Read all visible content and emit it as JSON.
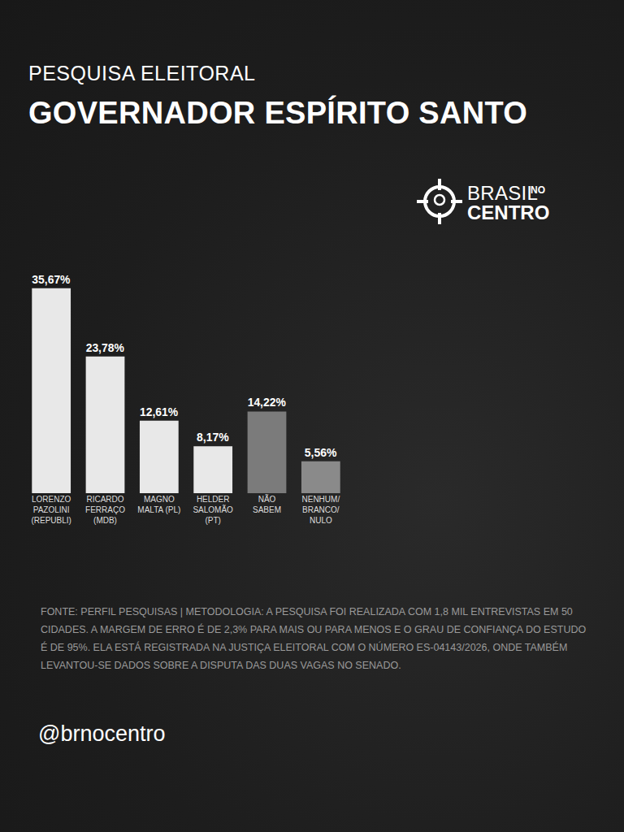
{
  "chart_data": {
    "type": "bar",
    "subtitle": "PESQUISA ELEITORAL",
    "title": "GOVERNADOR ESPÍRITO SANTO",
    "logo": [
      "BRASIL",
      "NO",
      "CENTRO"
    ],
    "categories": [
      "LORENZO\nPAZOLINI\n(REPUBLI)",
      "RICARDO\nFERRAÇO\n(MDB)",
      "MAGNO\nMALTA (PL)",
      "HELDER\nSALOMÃO\n(PT)",
      "NÃO\nSABEM",
      "NENHUM/\nBRANCO/\nNULO"
    ],
    "values": [
      35.67,
      23.78,
      12.61,
      8.17,
      14.22,
      5.56
    ],
    "value_labels": [
      "35,67%",
      "23,78%",
      "12,61%",
      "8,17%",
      "14,22%",
      "5,56%"
    ],
    "colors": [
      "#e8e8e8",
      "#e8e8e8",
      "#e8e8e8",
      "#e8e8e8",
      "#7b7b7b",
      "#8a8a8a"
    ],
    "data_labels": true,
    "ylim": [
      0,
      40
    ],
    "grid": false,
    "tick_labels": "x",
    "source": "FONTE: PERFIL PESQUISAS | METODOLOGIA: A PESQUISA FOI REALIZADA COM 1,8 MIL ENTREVISTAS EM 50 CIDADES. A MARGEM DE ERRO É DE 2,3% PARA MAIS OU PARA MENOS E O GRAU DE CONFIANÇA DO ESTUDO É DE 95%. ELA ESTÁ REGISTRADA NA JUSTIÇA ELEITORAL COM O NÚMERO ES-04143/2026, ONDE TAMBÉM LEVANTOU-SE DADOS SOBRE A DISPUTA DAS DUAS VAGAS NO SENADO.",
    "handle": "@brnocentro"
  }
}
